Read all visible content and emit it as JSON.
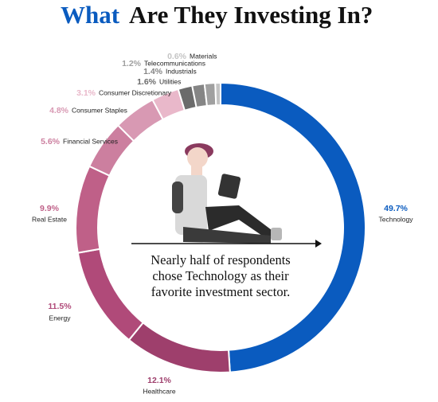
{
  "chart_data": {
    "type": "donut",
    "title_highlight": "What",
    "title": "Are They Investing In?",
    "title_highlight_color": "#0a5bbf",
    "annotation": [
      "Nearly half of respondents",
      "chose Technology as their",
      "favorite investment sector."
    ],
    "categories": [
      "Technology",
      "Healthcare",
      "Energy",
      "Real Estate",
      "Financial Services",
      "Consumer Staples",
      "Consumer Discretionary",
      "Utilities",
      "Industrials",
      "Telecommunications",
      "Materials"
    ],
    "values": [
      49.7,
      12.1,
      11.5,
      9.9,
      5.6,
      4.8,
      3.1,
      1.6,
      1.4,
      1.2,
      0.6
    ],
    "value_labels": [
      "49.7%",
      "12.1%",
      "11.5%",
      "9.9%",
      "5.6%",
      "4.8%",
      "3.1%",
      "1.6%",
      "1.4%",
      "1.2%",
      "0.6%"
    ],
    "colors": [
      "#0a5bbf",
      "#9e3f6c",
      "#b04a79",
      "#bf6088",
      "#cc7f9f",
      "#d899b3",
      "#e9b8ca",
      "#6b6b6b",
      "#858585",
      "#a0a0a0",
      "#c4c4c4"
    ]
  }
}
